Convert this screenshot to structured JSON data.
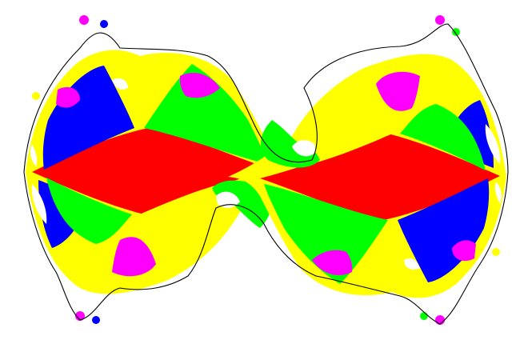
{
  "figure": {
    "kind": "fractal tiling (Schottky-group style limit set coloring)",
    "background": "#ffffff",
    "palette": {
      "red": "#ff0000",
      "green": "#00ff00",
      "yellow": "#ffff00",
      "blue": "#0000ff",
      "magenta": "#ff00ff",
      "white": "#ffffff",
      "outline": "#000000"
    }
  }
}
